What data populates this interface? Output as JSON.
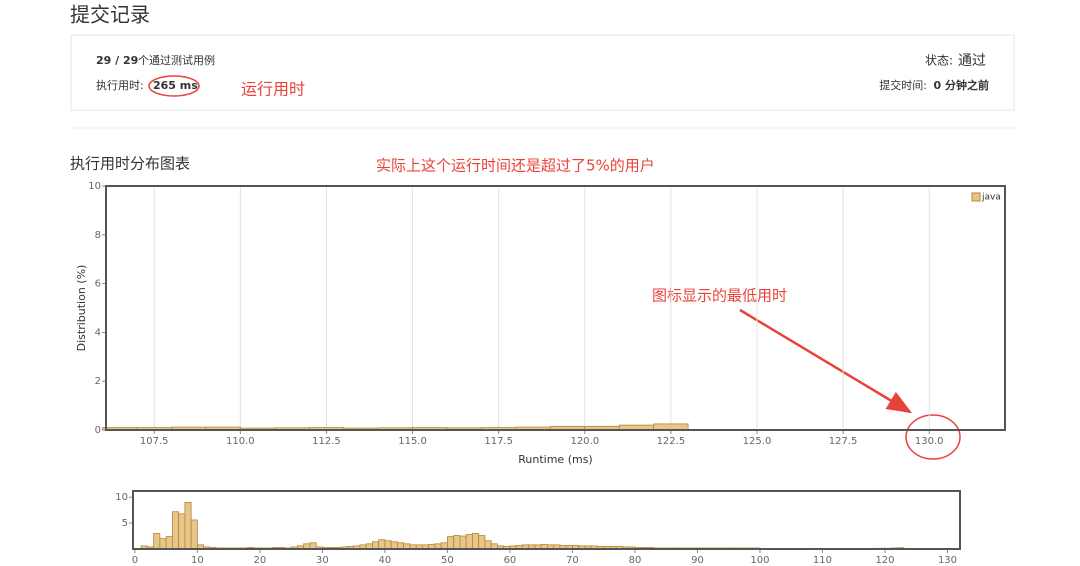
{
  "header": {
    "title": "提交记录"
  },
  "summary": {
    "passed": "29 / 29",
    "passed_text": "个通过测试用例",
    "runtime_label": "执行用时:",
    "runtime": "265 ms",
    "status_label": "状态:",
    "status": "通过",
    "submit_label": "提交时间:",
    "submit_time": "0 分钟之前"
  },
  "annotations": {
    "runtime_note": "运行用时",
    "chart_note": "实际上这个运行时间还是超过了5%的用户",
    "min_note": "图标显示的最低用时"
  },
  "section_title": "执行用时分布图表",
  "chart_data": [
    {
      "type": "histogram",
      "xlabel": "Runtime (ms)",
      "ylabel": "Distribution (%)",
      "bins": [
        106,
        107,
        108,
        109,
        110,
        111,
        112,
        113,
        114,
        115,
        116,
        117,
        118,
        119,
        120,
        121,
        122,
        123
      ],
      "series": [
        {
          "name": "java",
          "color": "#e6c68a",
          "values": [
            0.1,
            0.1,
            0.12,
            0.12,
            0.08,
            0.09,
            0.1,
            0.08,
            0.09,
            0.1,
            0.09,
            0.1,
            0.12,
            0.15,
            0.15,
            0.2,
            0.25
          ]
        }
      ],
      "xlim": [
        106.1,
        132.2
      ],
      "ylim": [
        0,
        10
      ],
      "xticks": [
        107.5,
        {
          "value": 110,
          "label": "110.0"
        },
        112.5,
        {
          "value": 115,
          "label": "115.0"
        },
        117.5,
        {
          "value": 120,
          "label": "120.0"
        },
        122.5,
        {
          "value": 125,
          "label": "125.0"
        },
        127.5,
        {
          "value": 130,
          "label": "130.0"
        }
      ],
      "yticks": [
        0,
        2,
        4,
        6,
        8,
        10
      ],
      "grid": true,
      "legend": "top-right"
    },
    {
      "type": "histogram",
      "color": "#e6c68a",
      "bins": [
        0,
        1,
        2,
        3,
        4,
        5,
        6,
        7,
        8,
        9,
        10,
        11,
        12,
        13,
        14,
        15,
        16,
        17,
        18,
        19,
        20,
        21,
        22,
        23,
        24,
        25,
        26,
        27,
        28,
        29,
        30,
        31,
        32,
        33,
        34,
        35,
        36,
        37,
        38,
        39,
        40,
        41,
        42,
        43,
        44,
        45,
        46,
        47,
        48,
        49,
        50,
        51,
        52,
        53,
        54,
        55,
        56,
        57,
        58,
        59,
        60,
        61,
        62,
        63,
        64,
        65,
        66,
        67,
        68,
        69,
        70,
        71,
        72,
        73,
        74,
        75,
        76,
        77,
        78,
        79,
        80,
        81,
        82,
        83,
        84,
        85,
        86,
        87,
        88,
        89,
        90,
        91,
        92,
        93,
        94,
        95,
        96,
        97,
        98,
        99,
        100,
        101,
        102,
        103,
        104,
        105,
        106,
        107,
        108,
        109,
        110,
        111,
        112,
        113,
        114,
        115,
        116,
        117,
        118,
        119,
        120,
        121,
        122,
        123
      ],
      "values": [
        0,
        0.6,
        0.4,
        3.0,
        2.0,
        2.4,
        7.2,
        6.8,
        9.0,
        5.6,
        0.8,
        0.4,
        0.3,
        0.2,
        0.2,
        0.2,
        0.2,
        0.2,
        0.3,
        0.2,
        0.2,
        0.2,
        0.3,
        0.3,
        0.2,
        0.4,
        0.6,
        1.0,
        1.2,
        0.4,
        0.3,
        0.3,
        0.3,
        0.4,
        0.5,
        0.6,
        0.8,
        1.0,
        1.4,
        1.8,
        1.6,
        1.4,
        1.2,
        1.0,
        0.8,
        0.8,
        0.8,
        0.9,
        1.0,
        1.2,
        2.4,
        2.6,
        2.5,
        2.8,
        3.0,
        2.6,
        1.6,
        1.0,
        0.6,
        0.5,
        0.6,
        0.7,
        0.8,
        0.8,
        0.8,
        0.9,
        0.8,
        0.8,
        0.7,
        0.7,
        0.7,
        0.6,
        0.6,
        0.6,
        0.5,
        0.5,
        0.5,
        0.5,
        0.4,
        0.4,
        0.3,
        0.3,
        0.3,
        0.2,
        0.2,
        0.2,
        0.2,
        0.2,
        0.2,
        0.2,
        0.2,
        0.2,
        0.2,
        0.2,
        0.2,
        0.2,
        0.2,
        0.2,
        0.2,
        0.2,
        0.1,
        0.1,
        0.1,
        0.1,
        0.1,
        0.1,
        0.1,
        0.1,
        0.12,
        0.12,
        0.08,
        0.09,
        0.1,
        0.08,
        0.09,
        0.1,
        0.09,
        0.1,
        0.12,
        0.15,
        0.15,
        0.2,
        0.25
      ],
      "xlim": [
        -0.3,
        132
      ],
      "ylim": [
        0,
        11.2
      ],
      "xticks": [
        0,
        10,
        20,
        30,
        40,
        50,
        60,
        70,
        80,
        90,
        100,
        110,
        120,
        130
      ],
      "yticks": [
        5,
        10
      ]
    }
  ]
}
